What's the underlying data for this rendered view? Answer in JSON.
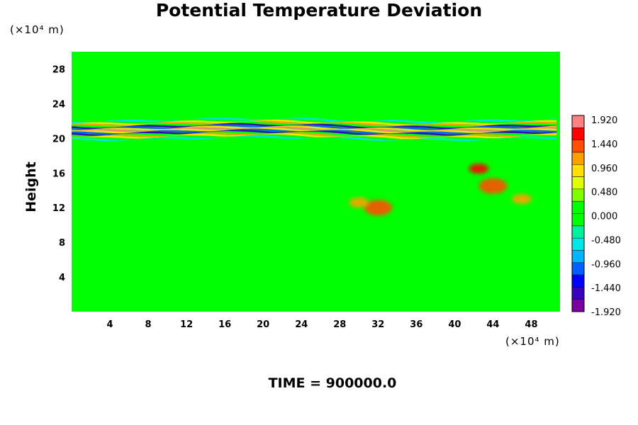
{
  "chart_data": {
    "type": "heatmap",
    "title": "Potential Temperature Deviation",
    "ylabel": "Height",
    "xlabel": "",
    "x_unit_note": "(×10⁴ m)",
    "y_unit_note": "(×10⁴ m)",
    "xlim": [
      0,
      51
    ],
    "ylim": [
      0,
      30
    ],
    "x_ticks": [
      4,
      8,
      12,
      16,
      20,
      24,
      28,
      32,
      36,
      40,
      44,
      48
    ],
    "y_ticks": [
      4,
      8,
      12,
      16,
      20,
      24,
      28
    ],
    "colorbar": {
      "labels": [
        "1.920",
        "1.440",
        "0.960",
        "0.480",
        "0.000",
        "-0.480",
        "-0.960",
        "-1.440",
        "-1.920"
      ],
      "min": -1.92,
      "max": 1.92,
      "colors": [
        "#7a00a0",
        "#3a00c0",
        "#0000ff",
        "#0060ff",
        "#00b4ff",
        "#00e6e6",
        "#00f0a0",
        "#00ff00",
        "#00ff00",
        "#80ff00",
        "#e0ff00",
        "#ffe000",
        "#ffa000",
        "#ff5000",
        "#ff0000",
        "#ff8080"
      ]
    },
    "background_value": 0.0,
    "features": [
      {
        "kind": "band",
        "x_range": [
          0,
          51
        ],
        "y_center": 21.0,
        "amplitude": 1.92,
        "note": "alternating positive/negative layer"
      },
      {
        "kind": "blob",
        "x": 42.5,
        "y": 16.5,
        "value": 1.6
      },
      {
        "kind": "blob",
        "x": 44,
        "y": 14.5,
        "value": 1.4
      },
      {
        "kind": "blob",
        "x": 47,
        "y": 13.0,
        "value": 1.0
      },
      {
        "kind": "blob",
        "x": 32,
        "y": 12.0,
        "value": 1.2
      },
      {
        "kind": "blob",
        "x": 30,
        "y": 12.6,
        "value": 1.0
      }
    ]
  },
  "footer": {
    "time_label": "TIME = 900000.0"
  }
}
